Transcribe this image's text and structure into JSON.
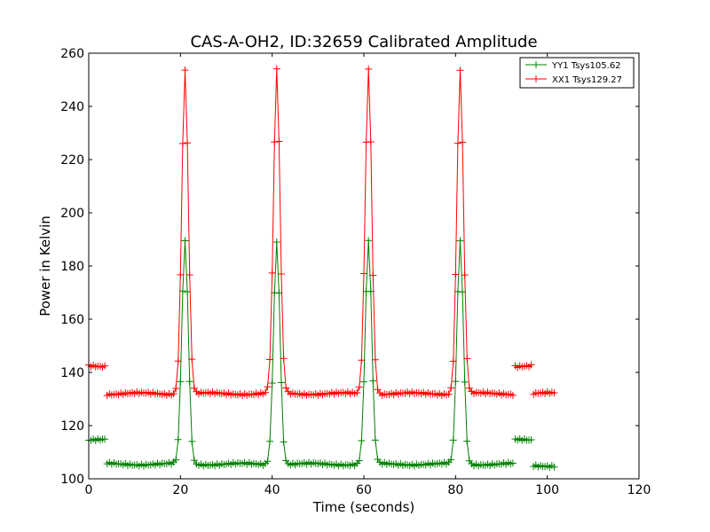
{
  "chart_data": {
    "type": "line",
    "title": "CAS-A-OH2, ID:32659 Calibrated Amplitude",
    "xlabel": "Time (seconds)",
    "ylabel": "Power in Kelvin",
    "xlim": [
      0,
      120
    ],
    "ylim": [
      100,
      260
    ],
    "xticks": [
      0,
      20,
      40,
      60,
      80,
      100,
      120
    ],
    "yticks": [
      100,
      120,
      140,
      160,
      180,
      200,
      220,
      240,
      260
    ],
    "grid": false,
    "legend_position": "top-right",
    "marker": "+",
    "sample_interval": 0.5,
    "series": [
      {
        "name": "YY1 Tsys105.62",
        "color": "#008000",
        "segments": [
          {
            "x0": 0,
            "x1": 4,
            "level": 114.5
          },
          {
            "x0": 4,
            "x1": 93,
            "level": 105.5
          },
          {
            "x0": 93,
            "x1": 97,
            "level": 114.5
          },
          {
            "x0": 97,
            "x1": 101.5,
            "level": 105
          }
        ],
        "peaks": [
          {
            "x": 21,
            "value": 189
          },
          {
            "x": 41,
            "value": 189
          },
          {
            "x": 61,
            "value": 189
          },
          {
            "x": 81,
            "value": 189
          }
        ]
      },
      {
        "name": "XX1 Tsys129.27",
        "color": "#ff0000",
        "segments": [
          {
            "x0": 0,
            "x1": 4,
            "level": 142.5
          },
          {
            "x0": 4,
            "x1": 93,
            "level": 132
          },
          {
            "x0": 93,
            "x1": 97,
            "level": 142.5
          },
          {
            "x0": 97,
            "x1": 101.5,
            "level": 132
          }
        ],
        "peaks": [
          {
            "x": 21,
            "value": 253.5
          },
          {
            "x": 41,
            "value": 253.5
          },
          {
            "x": 61,
            "value": 254
          },
          {
            "x": 81,
            "value": 253.5
          }
        ]
      }
    ]
  }
}
